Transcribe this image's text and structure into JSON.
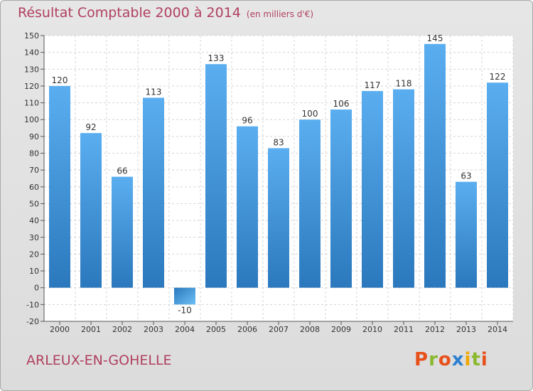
{
  "chart_data": {
    "type": "bar",
    "title": "Résultat Comptable 2000 à 2014",
    "subtitle": "(en milliers d'€)",
    "categories": [
      "2000",
      "2001",
      "2002",
      "2003",
      "2004",
      "2005",
      "2006",
      "2007",
      "2008",
      "2009",
      "2010",
      "2011",
      "2012",
      "2013",
      "2014"
    ],
    "values": [
      120,
      92,
      66,
      113,
      -10,
      133,
      96,
      83,
      100,
      106,
      117,
      118,
      145,
      63,
      122
    ],
    "ylim": [
      -20,
      150
    ],
    "yticks": [
      -20,
      -10,
      0,
      10,
      20,
      30,
      40,
      50,
      60,
      70,
      80,
      90,
      100,
      110,
      120,
      130,
      140,
      150
    ],
    "xlabel": "",
    "ylabel": "",
    "grid": true,
    "bar_color": "#3d8fd6"
  },
  "footer": {
    "town": "ARLEUX-EN-GOHELLE",
    "logo_text": "Proxiti",
    "logo_colors": [
      "#e8501a",
      "#8ab82e",
      "#e8501a",
      "#2d7fd1",
      "#f0a800",
      "#8ab82e",
      "#e8501a"
    ]
  }
}
